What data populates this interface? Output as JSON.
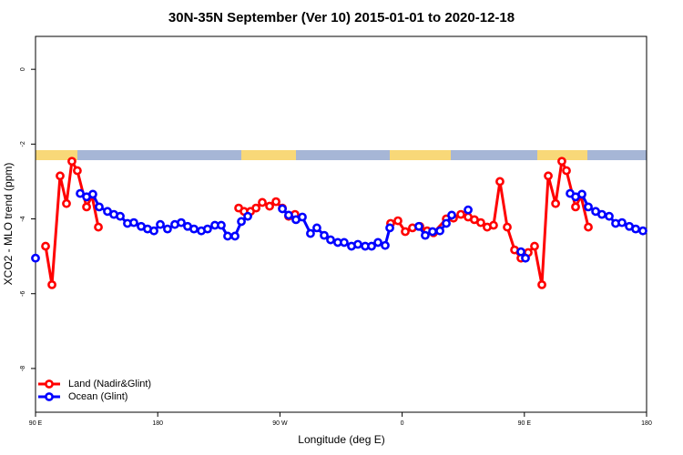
{
  "chart_data": {
    "type": "line",
    "title": "30N-35N September (Ver 10)   2015-01-01 to 2020-12-18",
    "x_label": "Longitude (deg E)",
    "y_label": "XCO2 - MLO trend (ppm)",
    "xlim": [
      90,
      540
    ],
    "xticks": [
      {
        "value": 90,
        "label": "90 E"
      },
      180,
      {
        "value": 270,
        "label": "90 W"
      },
      {
        "value": 360,
        "label": "0"
      },
      {
        "value": 450,
        "label": "90 E"
      },
      {
        "value": 540,
        "label": "180"
      }
    ],
    "ylim": [
      -9.17,
      0.88
    ],
    "yticks": [
      0,
      -2,
      -4,
      -6,
      -8
    ],
    "legend": "bottom-left",
    "series": [
      {
        "name": "Land (Nadir&Glint)",
        "color": "#ff0000",
        "x": [
          97.4,
          102.1,
          108.1,
          112.8,
          116.8,
          120.8,
          127.6,
          131.6,
          136.3,
          null,
          239.6,
          243.6,
          248.3,
          252.4,
          257.0,
          262.4,
          267.1,
          271.8,
          276.4,
          281.1,
          null,
          351.5,
          356.9,
          362.3,
          367.6,
          373.0,
          378.4,
          383.1,
          392.5,
          397.8,
          403.2,
          408.6,
          413.2,
          417.9,
          422.6,
          427.3,
          432.0,
          437.4,
          442.8,
          447.5,
          452.8,
          457.5,
          462.9,
          467.6,
          473.0,
          477.6,
          481.0,
          487.7,
          491.7,
          497.1
        ],
        "values": [
          -4.73,
          -5.76,
          -2.85,
          -3.59,
          -2.46,
          -2.71,
          -3.68,
          -3.39,
          -4.22,
          null,
          -3.71,
          -3.8,
          -3.8,
          -3.71,
          -3.56,
          -3.66,
          -3.54,
          -3.71,
          -3.93,
          -3.88,
          null,
          -4.12,
          -4.05,
          -4.34,
          -4.24,
          -4.2,
          -4.32,
          -4.37,
          -4.0,
          -3.98,
          -3.88,
          -3.95,
          -4.02,
          -4.1,
          -4.22,
          -4.17,
          -3.0,
          -4.22,
          -4.83,
          -5.05,
          -4.9,
          -4.73,
          -5.76,
          -2.85,
          -3.59,
          -2.46,
          -2.71,
          -3.68,
          -3.39,
          -4.22
        ]
      },
      {
        "name": "Ocean (Glint)",
        "color": "#0000ff",
        "x": [
          90.0,
          null,
          122.9,
          127.6,
          132.2,
          136.9,
          143.0,
          147.7,
          152.4,
          157.7,
          162.4,
          167.8,
          172.5,
          177.2,
          181.9,
          187.2,
          192.6,
          197.3,
          202.0,
          206.7,
          212.1,
          216.7,
          222.1,
          226.8,
          231.5,
          236.9,
          241.6,
          246.3,
          null,
          271.8,
          276.4,
          281.8,
          286.5,
          292.5,
          297.2,
          302.6,
          307.3,
          312.6,
          317.3,
          322.7,
          327.4,
          332.8,
          337.5,
          342.2,
          347.5,
          350.9,
          null,
          372.3,
          377.0,
          382.4,
          387.8,
          392.5,
          396.5,
          null,
          408.6,
          null,
          447.5,
          450.8,
          null,
          483.7,
          487.7,
          492.4,
          497.1,
          502.5,
          507.1,
          512.5,
          517.2,
          521.9,
          527.3,
          532.0,
          537.3
        ],
        "values": [
          -5.05,
          null,
          -3.32,
          -3.41,
          -3.34,
          -3.68,
          -3.8,
          -3.88,
          -3.93,
          -4.12,
          -4.1,
          -4.2,
          -4.27,
          -4.32,
          -4.15,
          -4.27,
          -4.15,
          -4.1,
          -4.2,
          -4.27,
          -4.32,
          -4.27,
          -4.17,
          -4.17,
          -4.46,
          -4.46,
          -4.07,
          -3.93,
          null,
          -3.73,
          -3.9,
          -4.02,
          -3.95,
          -4.39,
          -4.24,
          -4.44,
          -4.56,
          -4.63,
          -4.63,
          -4.73,
          -4.68,
          -4.73,
          -4.73,
          -4.63,
          -4.71,
          -4.24,
          null,
          -4.2,
          -4.44,
          -4.34,
          -4.32,
          -4.12,
          -3.9,
          null,
          -3.76,
          null,
          -4.88,
          -5.05,
          null,
          -3.32,
          -3.41,
          -3.34,
          -3.68,
          -3.8,
          -3.88,
          -3.93,
          -4.12,
          -4.1,
          -4.2,
          -4.27,
          -4.32
        ]
      }
    ]
  }
}
